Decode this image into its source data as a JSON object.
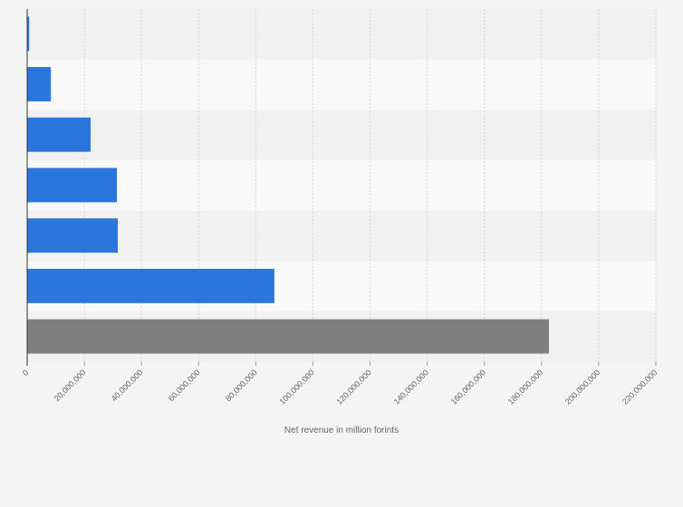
{
  "chart_data": {
    "type": "bar",
    "orientation": "horizontal",
    "categories": [
      null,
      null,
      null,
      null,
      null,
      null,
      null
    ],
    "values": [
      700000,
      8300000,
      22200000,
      31400000,
      31700000,
      86500000,
      182600000
    ],
    "colors": [
      "#2a76dd",
      "#2a76dd",
      "#2a76dd",
      "#2a76dd",
      "#2a76dd",
      "#2a76dd",
      "#7f7f7f"
    ],
    "x_label": "Net revenue in million forints",
    "xlim": [
      0,
      220000000
    ],
    "xticks": [
      0,
      {
        "value": 20000000,
        "label": "20,000,000"
      },
      {
        "value": 40000000,
        "label": "40,000,000"
      },
      {
        "value": 60000000,
        "label": "60,000,000"
      },
      {
        "value": 80000000,
        "label": "80,000,000"
      },
      {
        "value": 100000000,
        "label": "100,000,000"
      },
      {
        "value": 120000000,
        "label": "120,000,000"
      },
      {
        "value": 140000000,
        "label": "140,000,000"
      },
      {
        "value": 160000000,
        "label": "160,000,000"
      },
      {
        "value": 180000000,
        "label": "180,000,000"
      },
      {
        "value": 200000000,
        "label": "200,000,000"
      },
      {
        "value": 220000000,
        "label": "220,000,000"
      }
    ],
    "grid": true
  }
}
